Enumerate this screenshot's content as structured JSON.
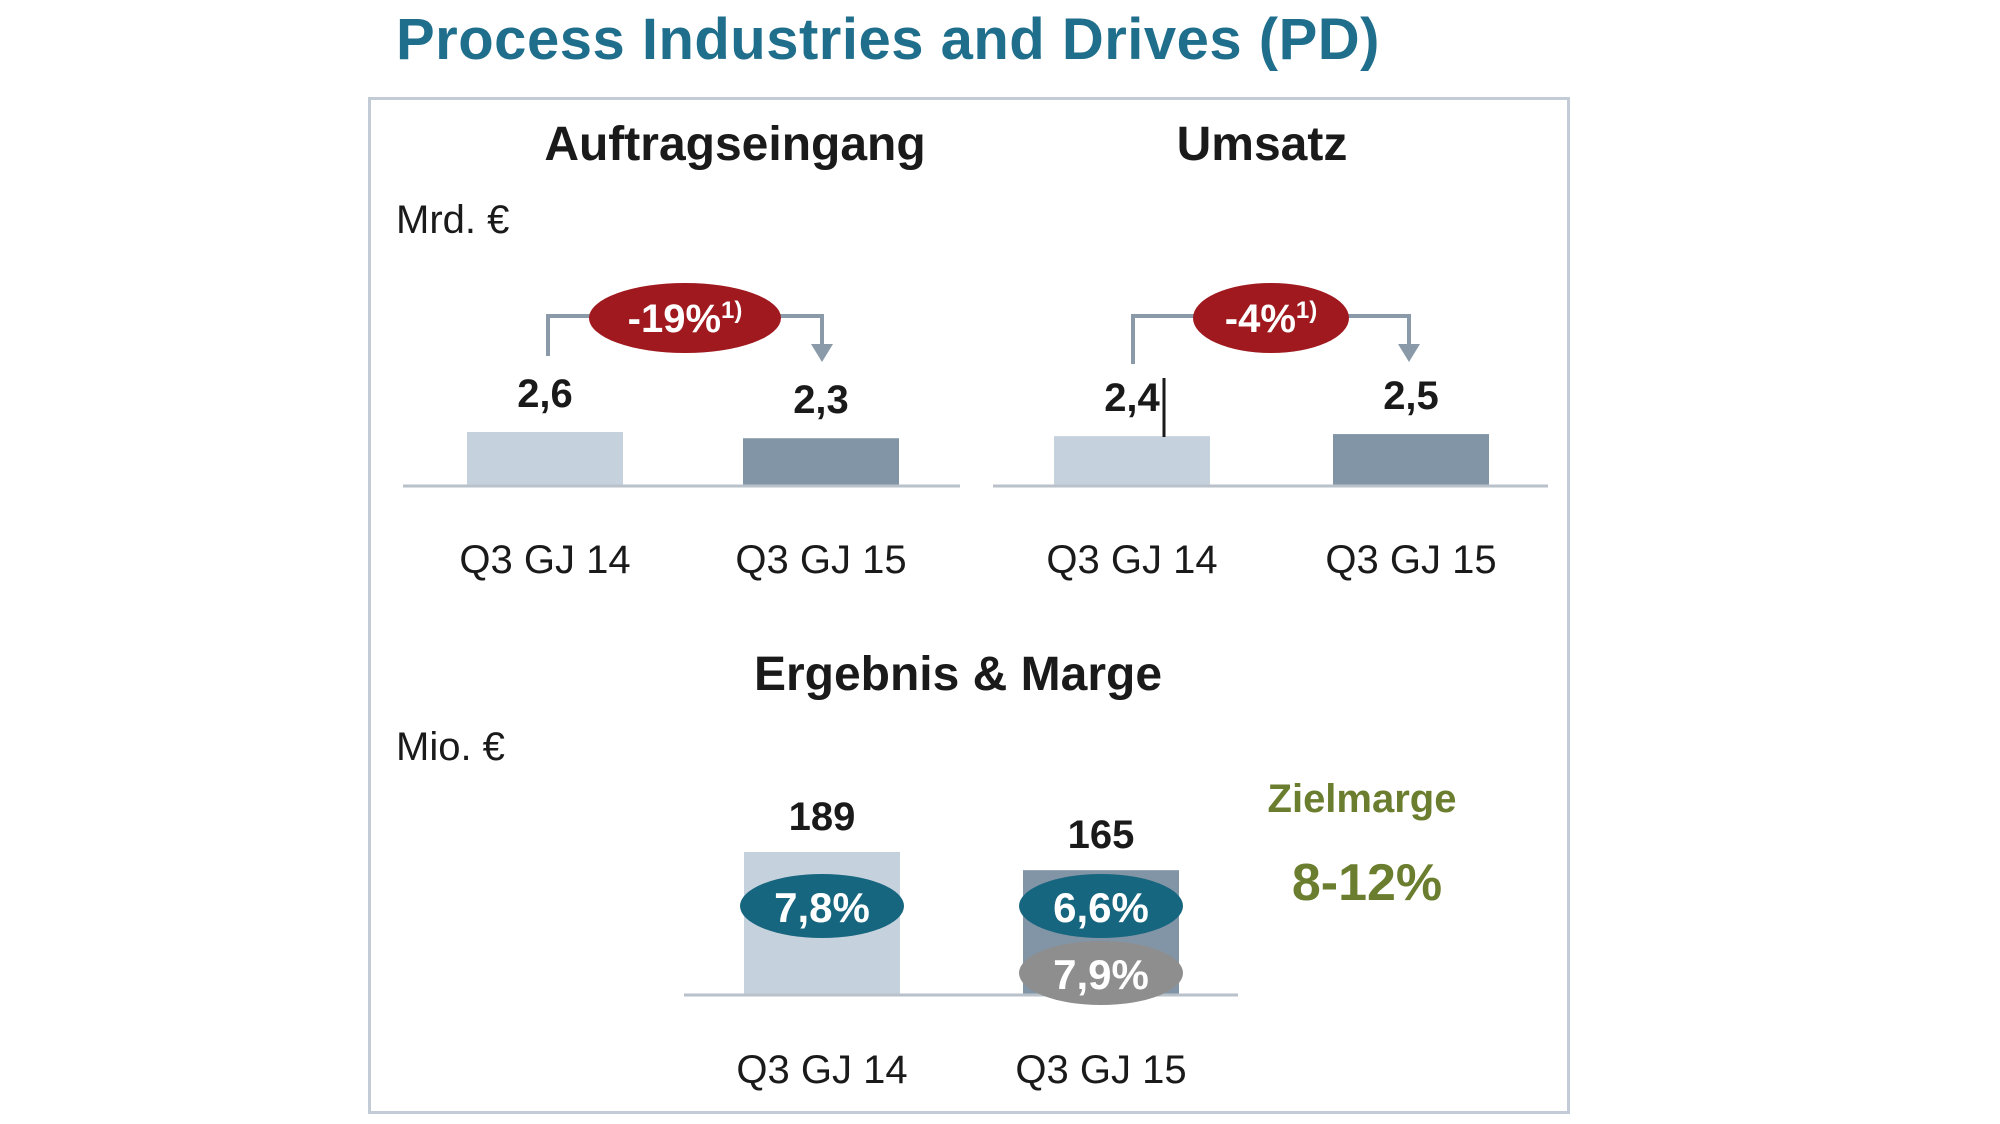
{
  "title": "Process Industries and Drives (PD)",
  "colors": {
    "title": "#1f6e8c",
    "bar_light": "#c5d1dc",
    "bar_dark": "#8295a6",
    "axis": "#b9c2cb",
    "badge_red": "#a0191e",
    "badge_teal": "#17667f",
    "badge_gray": "#8e8e8e",
    "target_green": "#6b7d2e",
    "arrow": "#8a9aa8"
  },
  "chart_data": [
    {
      "type": "bar",
      "title": "Auftragseingang",
      "unit": "Mrd. €",
      "categories": [
        "Q3 GJ 14",
        "Q3 GJ 15"
      ],
      "values": [
        2.6,
        2.3
      ],
      "value_labels": [
        "2,6",
        "2,3"
      ],
      "change_label": "-19%",
      "change_footnote": "1)",
      "ylim": [
        0,
        2.6
      ]
    },
    {
      "type": "bar",
      "title": "Umsatz",
      "unit": "",
      "categories": [
        "Q3 GJ 14",
        "Q3 GJ 15"
      ],
      "values": [
        2.4,
        2.5
      ],
      "value_labels": [
        "2,4",
        "2,5"
      ],
      "change_label": "-4%",
      "change_footnote": "1)",
      "ylim": [
        0,
        2.6
      ]
    },
    {
      "type": "bar",
      "title": "Ergebnis & Marge",
      "unit": "Mio. €",
      "categories": [
        "Q3 GJ 14",
        "Q3 GJ 15"
      ],
      "values": [
        189,
        165
      ],
      "value_labels": [
        "189",
        "165"
      ],
      "margins": [
        "7,8%",
        "6,6%"
      ],
      "secondary_margin": {
        "category": "Q3 GJ 15",
        "label": "7,9%"
      },
      "target": {
        "label": "Zielmarge",
        "value": "8-12%"
      },
      "ylim": [
        0,
        189
      ]
    }
  ]
}
